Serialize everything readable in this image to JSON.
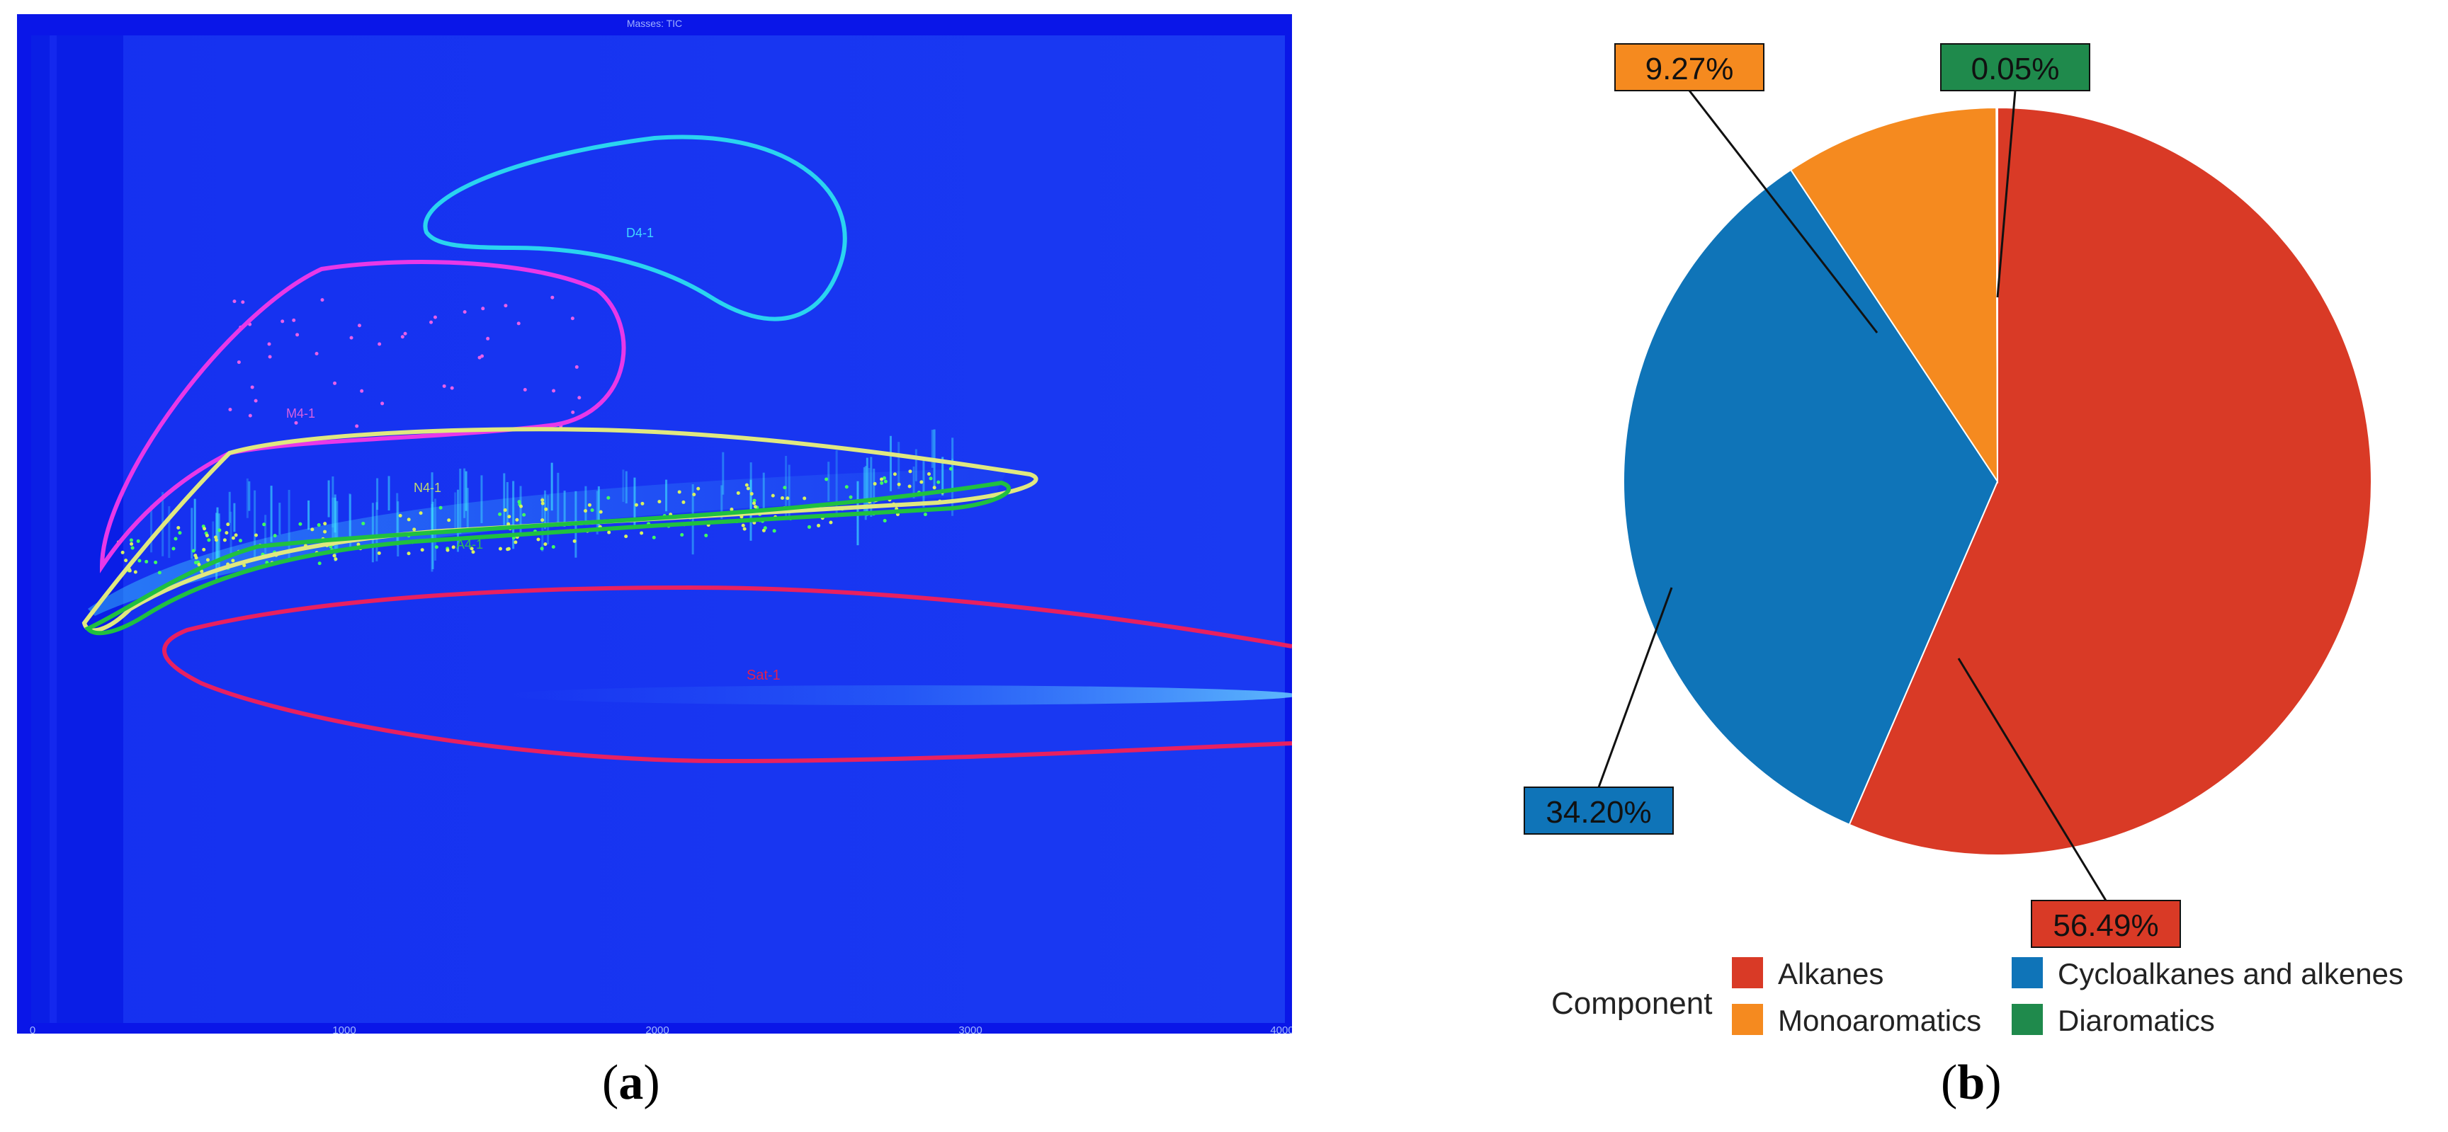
{
  "panel_a": {
    "header": "Masses: TIC",
    "x_ticks": [
      "0",
      "1000",
      "2000",
      "3000",
      "4000"
    ],
    "regions": [
      {
        "label": "D4-1",
        "color": "#2ad4f0"
      },
      {
        "label": "M4-1",
        "color": "#e838e8"
      },
      {
        "label": "N4-1",
        "color": "#e0e880"
      },
      {
        "label": "A4-1",
        "color": "#20c040"
      },
      {
        "label": "Sat-1",
        "color": "#e82060"
      }
    ]
  },
  "chart_data": [
    {
      "type": "heatmap",
      "title": "Masses: TIC",
      "x_ticks": [
        "0",
        "1000",
        "2000",
        "3000",
        "4000"
      ],
      "xlim": [
        0,
        4000
      ],
      "regions": [
        "D4-1",
        "M4-1",
        "N4-1",
        "A4-1",
        "Sat-1"
      ]
    },
    {
      "type": "pie",
      "legend_title": "Component",
      "legend_position": "bottom",
      "slices": [
        {
          "name": "Alkanes",
          "value": 56.49,
          "label": "56.49%",
          "color": "#d93a26"
        },
        {
          "name": "Cycloalkanes and alkenes",
          "value": 34.2,
          "label": "34.20%",
          "color": "#0f74b8"
        },
        {
          "name": "Monoaromatics",
          "value": 9.27,
          "label": "9.27%",
          "color": "#f58a1f"
        },
        {
          "name": "Diaromatics",
          "value": 0.05,
          "label": "0.05%",
          "color": "#1f8a4c"
        }
      ]
    }
  ],
  "captions": {
    "a": "a",
    "b": "b"
  }
}
